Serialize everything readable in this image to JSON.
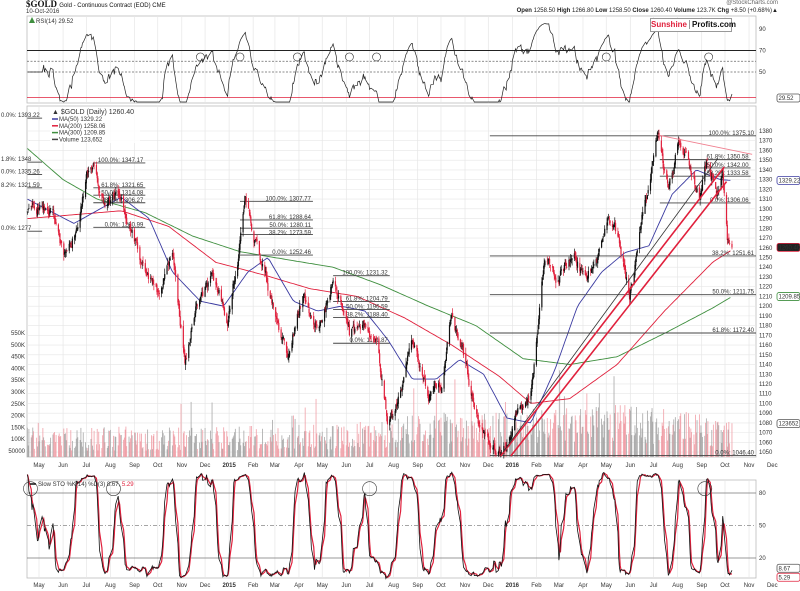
{
  "header": {
    "symbol": "$GOLD",
    "description": "Gold - Continuous Contract (EOD) CME",
    "date": "10-Oct-2016",
    "copyright": "@StockCharts.com",
    "quote": [
      {
        "k": "Open",
        "v": "1258.50"
      },
      {
        "k": "High",
        "v": "1266.80"
      },
      {
        "k": "Low",
        "v": "1258.50"
      },
      {
        "k": "Close",
        "v": "1260.40"
      },
      {
        "k": "Volume",
        "v": "123.7K"
      },
      {
        "k": "Chg",
        "v": "+8.50 (+0.68%)▲"
      }
    ],
    "logo": {
      "part1": "Sunshine",
      "part2": "Profits.com",
      "color1": "#e0203c"
    }
  },
  "colors": {
    "up": "#111111",
    "down": "#e0203c",
    "ma50": "#3a3aa0",
    "ma200": "#e0203c",
    "ma300": "#3f8f3f",
    "volume_up": "#a8a8a8",
    "volume_down": "#f0a0a8",
    "grid": "#e6e6e6"
  },
  "chart_data": [
    {
      "type": "line",
      "panel": "rsi",
      "legend": "RSI(14) 29.52",
      "current_value": "29.52",
      "yticks": [
        90,
        70,
        50
      ],
      "levels": {
        "overbought": 70,
        "oversold": 30,
        "dashed": [
          60,
          50
        ]
      },
      "annotation_circles": [
        "2014-11-25",
        "2015-01-15",
        "2015-03-30",
        "2015-06-05",
        "2015-07-10",
        "2016-05-01",
        "2016-09-10"
      ]
    },
    {
      "type": "candlestick",
      "panel": "price",
      "legend": {
        "title": "$GOLD (Daily) 1260.40",
        "ma50": "MA(50) 1329.22",
        "ma200": "MA(200) 1258.06",
        "ma300": "MA(300) 1209.85",
        "volume": "Volume 123,652"
      },
      "axis_badges": {
        "ma50": "1329.22",
        "close": "1260.40",
        "ma300": "1209.85",
        "volume": "123652"
      },
      "ylim": [
        1045,
        1390
      ],
      "yticks": [
        1380,
        1370,
        1360,
        1350,
        1340,
        1330,
        1320,
        1310,
        1300,
        1290,
        1280,
        1270,
        1260,
        1250,
        1240,
        1230,
        1220,
        1210,
        1200,
        1190,
        1180,
        1170,
        1160,
        1150,
        1140,
        1130,
        1120,
        1110,
        1100,
        1090,
        1080,
        1070,
        1060,
        1050
      ],
      "close_path": [
        [
          "2014-04-16",
          1302
        ],
        [
          "2014-05-01",
          1300
        ],
        [
          "2014-05-20",
          1295
        ],
        [
          "2014-06-02",
          1246
        ],
        [
          "2014-06-15",
          1275
        ],
        [
          "2014-07-01",
          1330
        ],
        [
          "2014-07-10",
          1345
        ],
        [
          "2014-07-25",
          1305
        ],
        [
          "2014-08-10",
          1315
        ],
        [
          "2014-08-25",
          1290
        ],
        [
          "2014-09-10",
          1250
        ],
        [
          "2014-09-30",
          1215
        ],
        [
          "2014-10-20",
          1248
        ],
        [
          "2014-11-05",
          1140
        ],
        [
          "2014-11-20",
          1195
        ],
        [
          "2014-12-10",
          1230
        ],
        [
          "2014-12-30",
          1185
        ],
        [
          "2015-01-22",
          1302
        ],
        [
          "2015-02-05",
          1262
        ],
        [
          "2015-02-25",
          1205
        ],
        [
          "2015-03-17",
          1150
        ],
        [
          "2015-04-06",
          1215
        ],
        [
          "2015-04-25",
          1178
        ],
        [
          "2015-05-15",
          1228
        ],
        [
          "2015-06-05",
          1170
        ],
        [
          "2015-06-25",
          1180
        ],
        [
          "2015-07-10",
          1160
        ],
        [
          "2015-07-24",
          1083
        ],
        [
          "2015-08-10",
          1105
        ],
        [
          "2015-08-25",
          1160
        ],
        [
          "2015-09-15",
          1105
        ],
        [
          "2015-10-01",
          1115
        ],
        [
          "2015-10-15",
          1188
        ],
        [
          "2015-11-01",
          1140
        ],
        [
          "2015-11-20",
          1075
        ],
        [
          "2015-12-17",
          1050
        ],
        [
          "2016-01-05",
          1085
        ],
        [
          "2016-01-25",
          1110
        ],
        [
          "2016-02-11",
          1240
        ],
        [
          "2016-03-01",
          1230
        ],
        [
          "2016-03-20",
          1255
        ],
        [
          "2016-04-05",
          1225
        ],
        [
          "2016-04-20",
          1250
        ],
        [
          "2016-05-02",
          1292
        ],
        [
          "2016-05-15",
          1272
        ],
        [
          "2016-05-31",
          1212
        ],
        [
          "2016-06-15",
          1285
        ],
        [
          "2016-06-24",
          1315
        ],
        [
          "2016-07-06",
          1372
        ],
        [
          "2016-07-20",
          1320
        ],
        [
          "2016-08-02",
          1365
        ],
        [
          "2016-08-15",
          1345
        ],
        [
          "2016-08-30",
          1310
        ],
        [
          "2016-09-07",
          1350
        ],
        [
          "2016-09-20",
          1315
        ],
        [
          "2016-09-28",
          1340
        ],
        [
          "2016-10-04",
          1268
        ],
        [
          "2016-10-10",
          1260.4
        ]
      ],
      "ma50": [
        [
          "2014-04-16",
          1310
        ],
        [
          "2014-06-15",
          1285
        ],
        [
          "2014-08-15",
          1312
        ],
        [
          "2014-09-20",
          1290
        ],
        [
          "2014-10-20",
          1235
        ],
        [
          "2014-11-25",
          1205
        ],
        [
          "2014-12-25",
          1200
        ],
        [
          "2015-01-25",
          1235
        ],
        [
          "2015-02-20",
          1250
        ],
        [
          "2015-03-25",
          1205
        ],
        [
          "2015-04-25",
          1195
        ],
        [
          "2015-05-25",
          1200
        ],
        [
          "2015-06-25",
          1195
        ],
        [
          "2015-07-25",
          1165
        ],
        [
          "2015-08-25",
          1125
        ],
        [
          "2015-09-25",
          1125
        ],
        [
          "2015-10-25",
          1145
        ],
        [
          "2015-11-25",
          1130
        ],
        [
          "2015-12-25",
          1085
        ],
        [
          "2016-01-25",
          1080
        ],
        [
          "2016-02-25",
          1135
        ],
        [
          "2016-03-25",
          1200
        ],
        [
          "2016-04-25",
          1235
        ],
        [
          "2016-05-25",
          1255
        ],
        [
          "2016-06-25",
          1262
        ],
        [
          "2016-07-25",
          1315
        ],
        [
          "2016-08-25",
          1340
        ],
        [
          "2016-09-25",
          1330
        ],
        [
          "2016-10-10",
          1329.22
        ]
      ],
      "ma200": [
        [
          "2014-04-16",
          1290
        ],
        [
          "2014-08-15",
          1298
        ],
        [
          "2014-10-15",
          1282
        ],
        [
          "2014-12-15",
          1245
        ],
        [
          "2015-02-15",
          1232
        ],
        [
          "2015-04-15",
          1218
        ],
        [
          "2015-06-15",
          1210
        ],
        [
          "2015-08-15",
          1188
        ],
        [
          "2015-10-15",
          1160
        ],
        [
          "2015-12-15",
          1128
        ],
        [
          "2016-01-25",
          1100
        ],
        [
          "2016-03-15",
          1105
        ],
        [
          "2016-05-15",
          1140
        ],
        [
          "2016-07-15",
          1195
        ],
        [
          "2016-09-15",
          1245
        ],
        [
          "2016-10-10",
          1258.06
        ]
      ],
      "ma300": [
        [
          "2014-04-16",
          1362
        ],
        [
          "2014-06-01",
          1330
        ],
        [
          "2014-07-15",
          1310
        ],
        [
          "2014-09-15",
          1296
        ],
        [
          "2014-11-15",
          1272
        ],
        [
          "2015-01-15",
          1256
        ],
        [
          "2015-03-15",
          1248
        ],
        [
          "2015-05-15",
          1240
        ],
        [
          "2015-07-15",
          1222
        ],
        [
          "2015-09-15",
          1200
        ],
        [
          "2015-11-15",
          1180
        ],
        [
          "2016-01-15",
          1146
        ],
        [
          "2016-03-15",
          1140
        ],
        [
          "2016-05-15",
          1148
        ],
        [
          "2016-07-15",
          1172
        ],
        [
          "2016-09-15",
          1198
        ],
        [
          "2016-10-10",
          1209.85
        ]
      ],
      "volume_avg": [
        [
          "2014-04-16",
          100000
        ],
        [
          "2015-06-01",
          110000
        ],
        [
          "2015-09-01",
          140000
        ],
        [
          "2016-01-01",
          150000
        ],
        [
          "2016-06-01",
          170000
        ],
        [
          "2016-10-10",
          123652
        ]
      ],
      "volume_yticks": [
        "550K",
        "500K",
        "450K",
        "400K",
        "350K",
        "300K",
        "250K",
        "200K",
        "150K",
        "100K",
        "50000"
      ],
      "fibonacci": [
        {
          "from": "2014-04-16",
          "to": "2014-05-05",
          "levels": [
            {
              "label": "0.0%: 1393.22",
              "price": 1393.22
            },
            {
              "label": "1.8%: 1348",
              "price": 1348
            },
            {
              "label": "0.0%: 1335.26",
              "price": 1335.26
            },
            {
              "label": "8.2%: 1321.59",
              "price": 1321.59
            },
            {
              "label": "0.0%: 1277",
              "price": 1277
            }
          ]
        },
        {
          "from": "2014-07-10",
          "to": "2014-09-15",
          "levels": [
            {
              "label": "100.0%: 1347.17",
              "price": 1347.17
            },
            {
              "label": "61.8%: 1321.65",
              "price": 1321.65
            },
            {
              "label": "50.0%: 1314.08",
              "price": 1314.08
            },
            {
              "label": "38.2%: 1306.27",
              "price": 1306.27
            },
            {
              "label": "0.0%: 1280.99",
              "price": 1280.99
            }
          ]
        },
        {
          "from": "2015-01-15",
          "to": "2015-04-19",
          "levels": [
            {
              "label": "100.0%: 1307.77",
              "price": 1307.77
            },
            {
              "label": "61.8%: 1288.64",
              "price": 1288.64
            },
            {
              "label": "50.0%: 1280.11",
              "price": 1280.11
            },
            {
              "label": "38.2%: 1273.59",
              "price": 1273.59
            },
            {
              "label": "0.0%: 1252.46",
              "price": 1252.46
            }
          ]
        },
        {
          "from": "2015-05-15",
          "to": "2015-07-27",
          "levels": [
            {
              "label": "100.0%: 1231.32",
              "price": 1231.32
            },
            {
              "label": "61.8%: 1204.79",
              "price": 1204.79
            },
            {
              "label": "50.0%: 1196.59",
              "price": 1196.59
            },
            {
              "label": "38.2%: 1188.40",
              "price": 1188.4
            },
            {
              "label": "0.0%: 1161.87",
              "price": 1161.87
            }
          ]
        },
        {
          "from": "2015-12-03",
          "to": "2016-12-08",
          "levels": [
            {
              "label": "100.0%: 1375.10",
              "price": 1375.1
            },
            {
              "label": "38.2%: 1251.61",
              "price": 1251.61
            },
            {
              "label": "50.0%: 1211.75",
              "price": 1211.75
            },
            {
              "label": "61.8%: 1172.40",
              "price": 1172.4
            },
            {
              "label": "0.0%: 1046.40",
              "price": 1046.4
            }
          ]
        },
        {
          "from": "2016-07-09",
          "to": "2016-11-03",
          "levels": [
            {
              "label": "61.8%: 1350.58",
              "price": 1350.58
            },
            {
              "label": "50.0%: 1342.00",
              "price": 1342.0
            },
            {
              "label": "38.2%: 1333.58",
              "price": 1333.58
            },
            {
              "label": "0.0%: 1306.06",
              "price": 1306.06
            }
          ]
        }
      ],
      "trendlines": [
        {
          "color": "#e0203c",
          "width": 1.6,
          "from": [
            "2015-12-17",
            1046
          ],
          "to": [
            "2016-09-30",
            1343
          ]
        },
        {
          "color": "#e0203c",
          "width": 1.6,
          "from": [
            "2015-12-30",
            1046
          ],
          "to": [
            "2016-10-03",
            1328
          ]
        },
        {
          "color": "#333333",
          "width": 0.8,
          "from": [
            "2015-12-20",
            1050
          ],
          "to": [
            "2016-09-22",
            1352
          ]
        },
        {
          "color": "#f08090",
          "width": 0.9,
          "from": [
            "2016-07-06",
            1376
          ],
          "to": [
            "2016-11-05",
            1356
          ]
        }
      ]
    },
    {
      "type": "line",
      "panel": "stochastic",
      "legend": {
        "text": "Slow STO %K(14) %D(3) 8.67,",
        "d_value": "5.29"
      },
      "current_values": {
        "k": "8.67",
        "d": "5.29"
      },
      "yticks": [
        80,
        50,
        20
      ],
      "annotation_circles": [
        "2014-04-20",
        "2014-08-05",
        "2015-07-01",
        "2016-09-05"
      ]
    }
  ],
  "x_axis": {
    "months": [
      [
        "2014-05-01",
        "May"
      ],
      [
        "2014-06-01",
        "Jun"
      ],
      [
        "2014-07-01",
        "Jul"
      ],
      [
        "2014-08-01",
        "Aug"
      ],
      [
        "2014-09-01",
        "Sep"
      ],
      [
        "2014-10-01",
        "Oct"
      ],
      [
        "2014-11-01",
        "Nov"
      ],
      [
        "2014-12-01",
        "Dec"
      ],
      [
        "2015-01-01",
        "2015"
      ],
      [
        "2015-02-01",
        "Feb"
      ],
      [
        "2015-03-01",
        "Mar"
      ],
      [
        "2015-04-01",
        "Apr"
      ],
      [
        "2015-05-01",
        "May"
      ],
      [
        "2015-06-01",
        "Jun"
      ],
      [
        "2015-07-01",
        "Jul"
      ],
      [
        "2015-08-01",
        "Aug"
      ],
      [
        "2015-09-01",
        "Sep"
      ],
      [
        "2015-10-01",
        "Oct"
      ],
      [
        "2015-11-01",
        "Nov"
      ],
      [
        "2015-12-01",
        "Dec"
      ],
      [
        "2016-01-01",
        "2016"
      ],
      [
        "2016-02-01",
        "Feb"
      ],
      [
        "2016-03-01",
        "Mar"
      ],
      [
        "2016-04-01",
        "Apr"
      ],
      [
        "2016-05-01",
        "May"
      ],
      [
        "2016-06-01",
        "Jun"
      ],
      [
        "2016-07-01",
        "Jul"
      ],
      [
        "2016-08-01",
        "Aug"
      ],
      [
        "2016-09-01",
        "Sep"
      ],
      [
        "2016-10-01",
        "Oct"
      ],
      [
        "2016-11-01",
        "Nov"
      ],
      [
        "2016-12-01",
        "Dec"
      ]
    ],
    "range": [
      "2014-04-16",
      "2016-12-08"
    ]
  }
}
